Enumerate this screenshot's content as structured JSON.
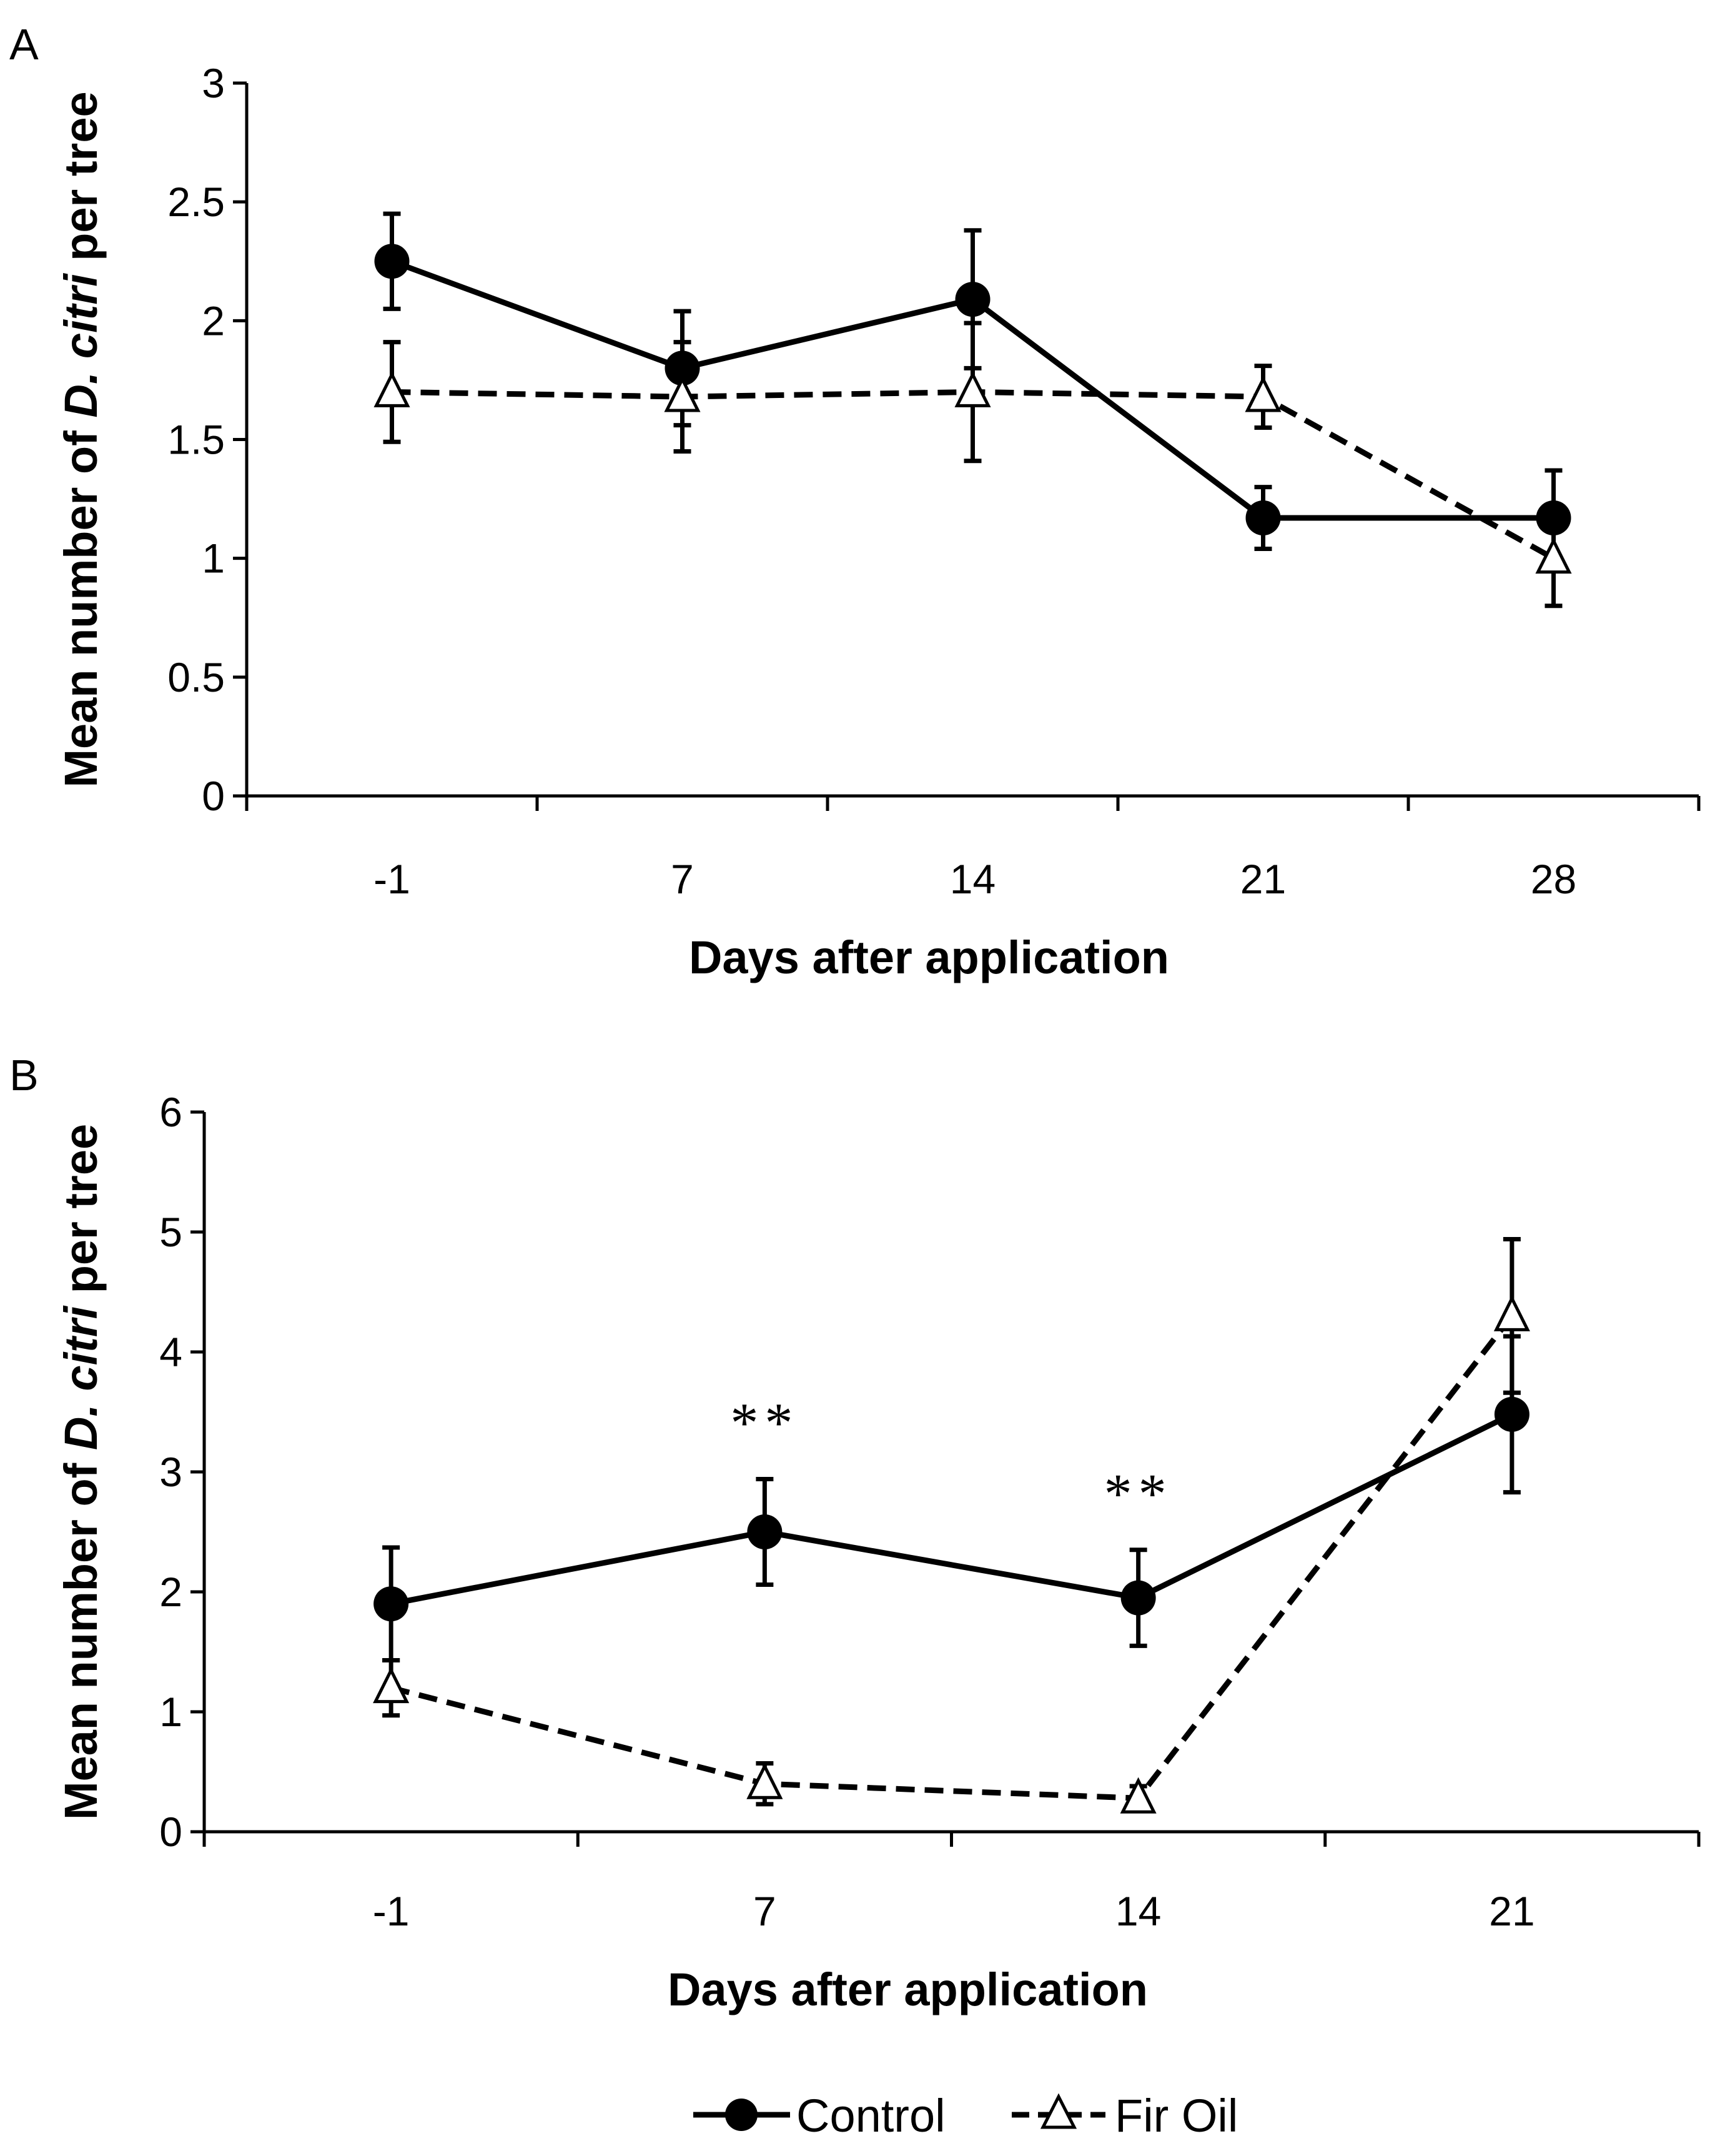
{
  "panel_labels": [
    "A",
    "B"
  ],
  "legend": {
    "control_label": "Control",
    "firoil_label": "Fir Oil"
  },
  "colors": {
    "ink": "#000000",
    "marker_fill_open": "#ffffff"
  },
  "chart_data": [
    {
      "type": "line",
      "panel": "A",
      "title": "",
      "xlabel": "Days after application",
      "ylabel_parts": [
        "Mean number of ",
        "D. citri",
        " per tree"
      ],
      "categories": [
        "-1",
        "7",
        "14",
        "21",
        "28"
      ],
      "ylim": [
        0,
        3
      ],
      "yticks": [
        0,
        0.5,
        1,
        1.5,
        2,
        2.5,
        3
      ],
      "ytick_labels": [
        "0",
        "0.5",
        "1",
        "1.5",
        "2",
        "2.5",
        "3"
      ],
      "grid": false,
      "legend_position": "bottom",
      "series": [
        {
          "name": "Control",
          "marker": "filled-circle",
          "line_style": "solid",
          "values": [
            2.25,
            1.8,
            2.09,
            1.17,
            1.17
          ],
          "errors": [
            0.2,
            0.24,
            0.29,
            0.13,
            0.2
          ]
        },
        {
          "name": "Fir Oil",
          "marker": "open-triangle",
          "line_style": "dashed",
          "values": [
            1.7,
            1.68,
            1.7,
            1.68,
            1.0
          ],
          "errors": [
            0.21,
            0.23,
            0.29,
            0.13,
            0.2
          ]
        }
      ],
      "annotations": []
    },
    {
      "type": "line",
      "panel": "B",
      "title": "",
      "xlabel": "Days after application",
      "ylabel_parts": [
        "Mean number of ",
        "D. citri",
        " per tree"
      ],
      "categories": [
        "-1",
        "7",
        "14",
        "21"
      ],
      "ylim": [
        0,
        6
      ],
      "yticks": [
        0,
        1,
        2,
        3,
        4,
        5,
        6
      ],
      "ytick_labels": [
        "0",
        "1",
        "2",
        "3",
        "4",
        "5",
        "6"
      ],
      "grid": false,
      "legend_position": "bottom",
      "series": [
        {
          "name": "Control",
          "marker": "filled-circle",
          "line_style": "solid",
          "values": [
            1.9,
            2.5,
            1.95,
            3.48
          ],
          "errors": [
            0.47,
            0.44,
            0.4,
            0.65
          ]
        },
        {
          "name": "Fir Oil",
          "marker": "open-triangle",
          "line_style": "dashed",
          "values": [
            1.2,
            0.4,
            0.28,
            4.3
          ],
          "errors": [
            0.23,
            0.17,
            0.1,
            0.64
          ]
        }
      ],
      "annotations": [
        {
          "category": "7",
          "text": "**"
        },
        {
          "category": "14",
          "text": "**"
        }
      ]
    }
  ]
}
